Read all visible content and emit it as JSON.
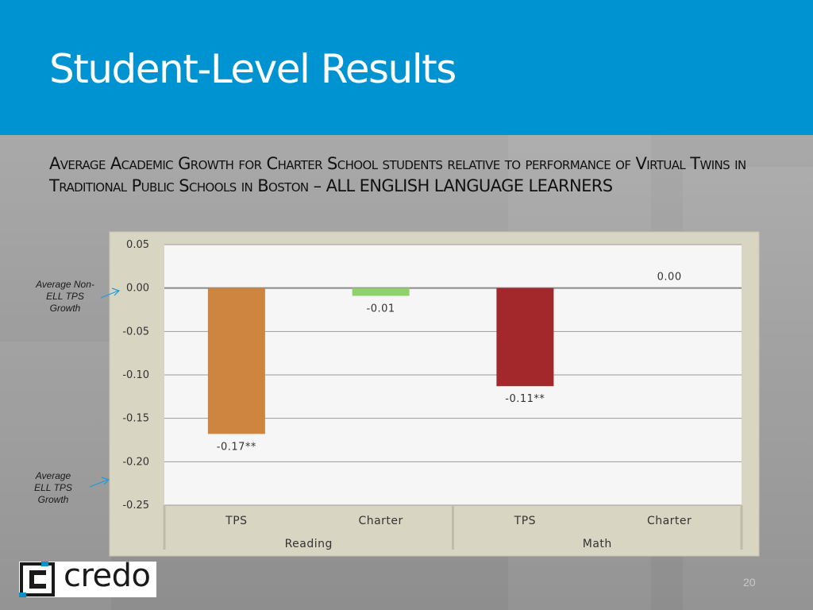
{
  "slide": {
    "title": "Student-Level Results",
    "subtitle": "Average Academic Growth for Charter School students relative to performance of Virtual Twins in Traditional Public Schools in Boston – ALL ENGLISH LANGUAGE LEARNERS",
    "page_number": "20",
    "logo_text": "credo",
    "header_color": "#0093d1"
  },
  "annotations": {
    "note1": "Average Non-ELL TPS Growth",
    "note2": "Average ELL TPS Growth",
    "arrow_color": "#1e9bd7"
  },
  "chart_data": {
    "type": "bar",
    "groups": [
      {
        "label": "Reading",
        "categories": [
          "TPS",
          "Charter"
        ]
      },
      {
        "label": "Math",
        "categories": [
          "TPS",
          "Charter"
        ]
      }
    ],
    "categories": [
      "TPS",
      "Charter",
      "TPS",
      "Charter"
    ],
    "values": [
      -0.168,
      -0.009,
      -0.113,
      0.0
    ],
    "data_labels": [
      "-0.17**",
      "-0.01",
      "-0.11**",
      "0.00"
    ],
    "bar_colors": [
      "#cd853f",
      "#90d16c",
      "#a3282c",
      "#cccccc"
    ],
    "ylim": [
      -0.25,
      0.05
    ],
    "yticks": [
      0.05,
      0.0,
      -0.05,
      -0.1,
      -0.15,
      -0.2,
      -0.25
    ],
    "ytick_labels": [
      "0.05",
      "0.00",
      "-0.05",
      "-0.10",
      "-0.15",
      "-0.20",
      "-0.25"
    ],
    "grid": true,
    "xlabel": "",
    "ylabel": ""
  }
}
